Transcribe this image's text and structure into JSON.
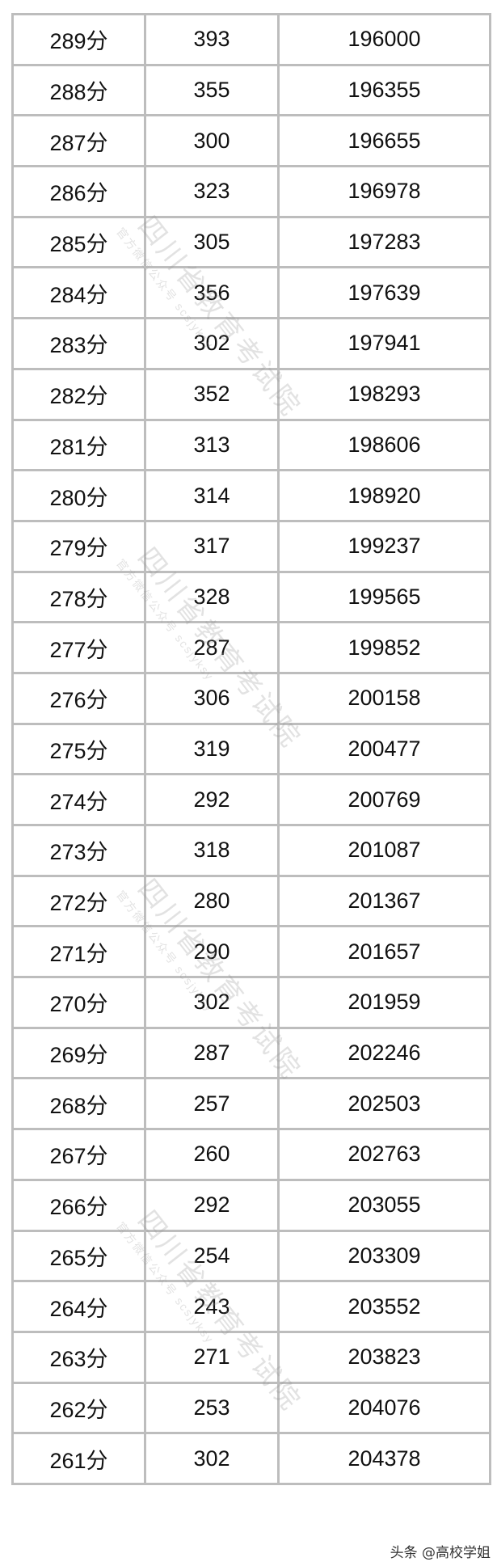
{
  "table": {
    "score_suffix": "分",
    "rows": [
      {
        "score": "289",
        "count": "393",
        "cumulative": "196000"
      },
      {
        "score": "288",
        "count": "355",
        "cumulative": "196355"
      },
      {
        "score": "287",
        "count": "300",
        "cumulative": "196655"
      },
      {
        "score": "286",
        "count": "323",
        "cumulative": "196978"
      },
      {
        "score": "285",
        "count": "305",
        "cumulative": "197283"
      },
      {
        "score": "284",
        "count": "356",
        "cumulative": "197639"
      },
      {
        "score": "283",
        "count": "302",
        "cumulative": "197941"
      },
      {
        "score": "282",
        "count": "352",
        "cumulative": "198293"
      },
      {
        "score": "281",
        "count": "313",
        "cumulative": "198606"
      },
      {
        "score": "280",
        "count": "314",
        "cumulative": "198920"
      },
      {
        "score": "279",
        "count": "317",
        "cumulative": "199237"
      },
      {
        "score": "278",
        "count": "328",
        "cumulative": "199565"
      },
      {
        "score": "277",
        "count": "287",
        "cumulative": "199852"
      },
      {
        "score": "276",
        "count": "306",
        "cumulative": "200158"
      },
      {
        "score": "275",
        "count": "319",
        "cumulative": "200477"
      },
      {
        "score": "274",
        "count": "292",
        "cumulative": "200769"
      },
      {
        "score": "273",
        "count": "318",
        "cumulative": "201087"
      },
      {
        "score": "272",
        "count": "280",
        "cumulative": "201367"
      },
      {
        "score": "271",
        "count": "290",
        "cumulative": "201657"
      },
      {
        "score": "270",
        "count": "302",
        "cumulative": "201959"
      },
      {
        "score": "269",
        "count": "287",
        "cumulative": "202246"
      },
      {
        "score": "268",
        "count": "257",
        "cumulative": "202503"
      },
      {
        "score": "267",
        "count": "260",
        "cumulative": "202763"
      },
      {
        "score": "266",
        "count": "292",
        "cumulative": "203055"
      },
      {
        "score": "265",
        "count": "254",
        "cumulative": "203309"
      },
      {
        "score": "264",
        "count": "243",
        "cumulative": "203552"
      },
      {
        "score": "263",
        "count": "271",
        "cumulative": "203823"
      },
      {
        "score": "262",
        "count": "253",
        "cumulative": "204076"
      },
      {
        "score": "261",
        "count": "302",
        "cumulative": "204378"
      }
    ]
  },
  "watermark": {
    "title": "四川省教育考试院",
    "subtitle": "官方微信公众号 scsjyksy"
  },
  "footer": {
    "credit": "头条 @高校学姐"
  },
  "colors": {
    "border": "#bdbdbd",
    "text": "#111111"
  }
}
